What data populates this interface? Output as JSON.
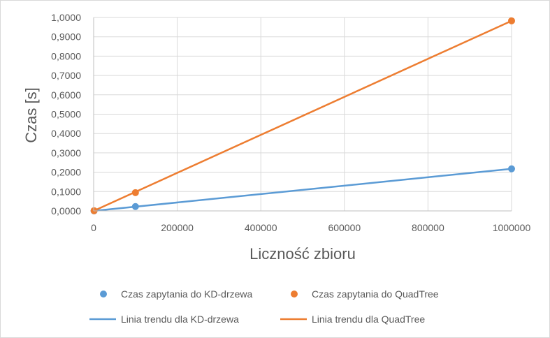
{
  "chart_data": {
    "type": "scatter",
    "xlabel": "Liczność zbioru",
    "ylabel": "Czas [s]",
    "xlim": [
      0,
      1000000
    ],
    "ylim": [
      0,
      1.0
    ],
    "x_ticks": [
      0,
      200000,
      400000,
      600000,
      800000,
      1000000
    ],
    "x_tick_labels": [
      "0",
      "200000",
      "400000",
      "600000",
      "800000",
      "1000000"
    ],
    "y_ticks": [
      0,
      0.1,
      0.2,
      0.3,
      0.4,
      0.5,
      0.6,
      0.7,
      0.8,
      0.9,
      1.0
    ],
    "y_tick_labels": [
      "0,0000",
      "0,1000",
      "0,2000",
      "0,3000",
      "0,4000",
      "0,5000",
      "0,6000",
      "0,7000",
      "0,8000",
      "0,9000",
      "1,0000"
    ],
    "grid": true,
    "legend_position": "bottom",
    "series": [
      {
        "name": "Czas zapytania do KD-drzewa",
        "kind": "points",
        "color": "#5B9BD5",
        "x": [
          1000,
          100000,
          1000000
        ],
        "y": [
          0.0003,
          0.0225,
          0.2175
        ]
      },
      {
        "name": "Czas zapytania do QuadTree",
        "kind": "points",
        "color": "#ED7D31",
        "x": [
          1000,
          100000,
          1000000
        ],
        "y": [
          0.001,
          0.0945,
          0.9825
        ]
      },
      {
        "name": "Linia trendu dla KD-drzewa",
        "kind": "trendline",
        "color": "#5B9BD5",
        "x": [
          0,
          1000000
        ],
        "y": [
          0.0,
          0.2175
        ]
      },
      {
        "name": "Linia trendu dla QuadTree",
        "kind": "trendline",
        "color": "#ED7D31",
        "x": [
          0,
          1000000
        ],
        "y": [
          0.0,
          0.9825
        ]
      }
    ]
  }
}
